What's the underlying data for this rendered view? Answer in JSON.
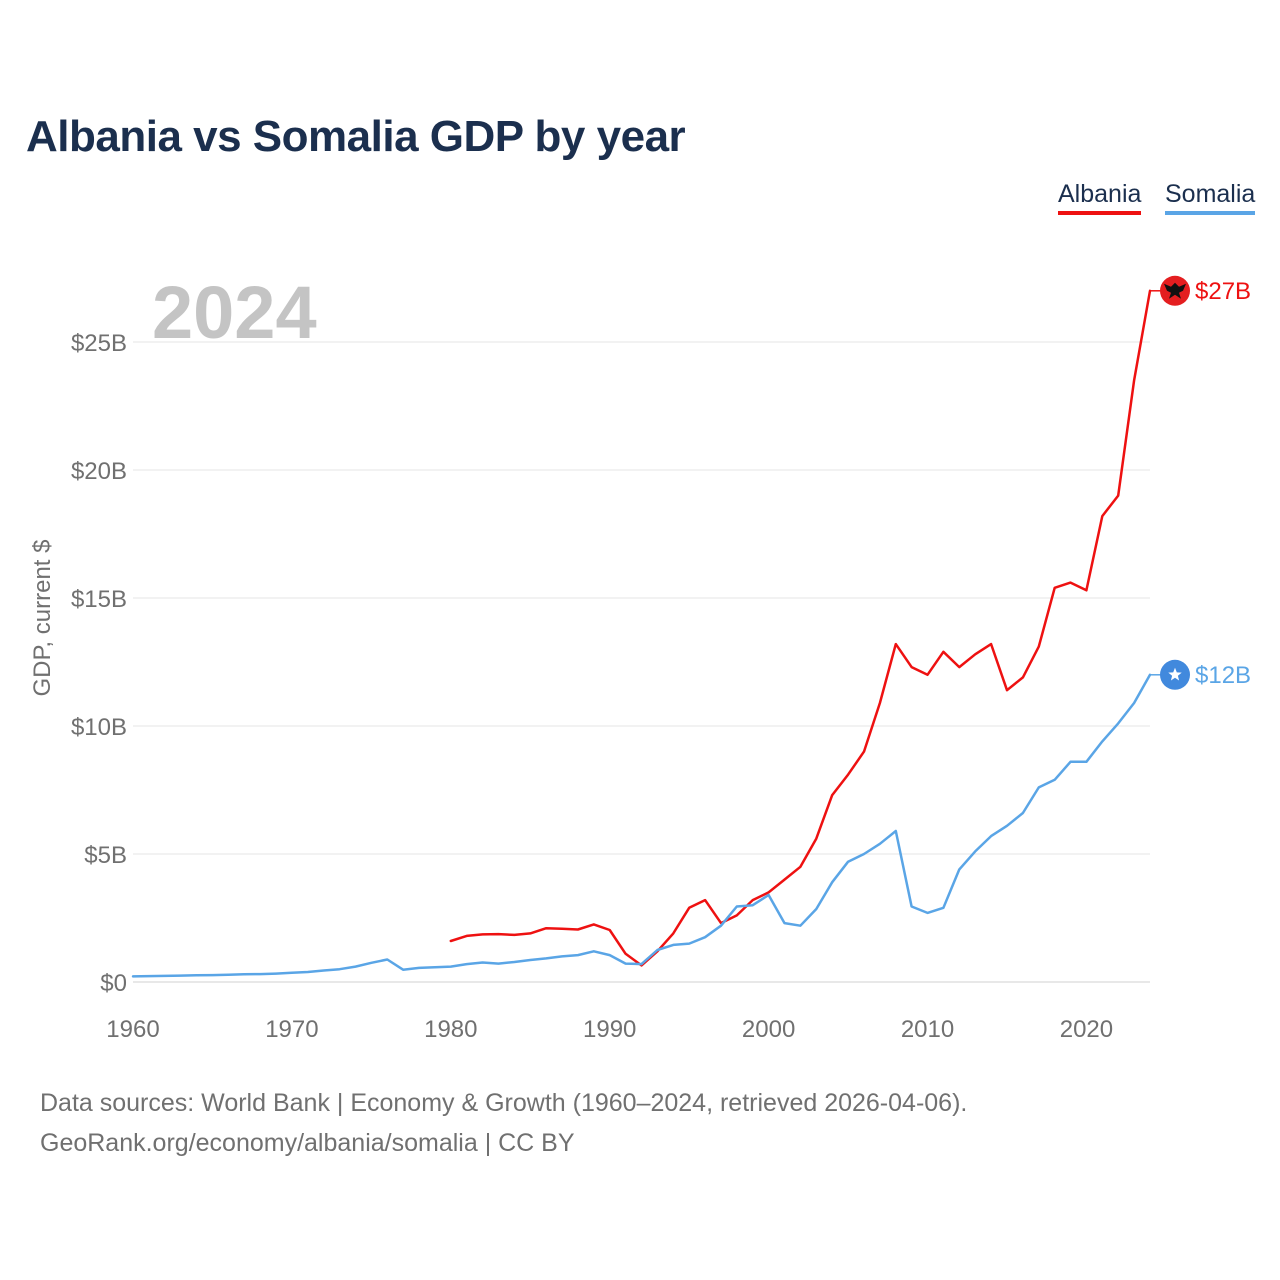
{
  "title": "Albania vs Somalia GDP by year",
  "legend": [
    {
      "label": "Albania",
      "color": "#ee1111"
    },
    {
      "label": "Somalia",
      "color": "#5aa5e6"
    }
  ],
  "source": {
    "line1": "Data sources: World Bank | Economy & Growth (1960–2024, retrieved 2026-04-06).",
    "line2": "GeoRank.org/economy/albania/somalia | CC BY"
  },
  "chart_data": {
    "type": "line",
    "title": "Albania vs Somalia GDP by year",
    "year_label": "2024",
    "xlabel": "",
    "ylabel": "GDP, current $",
    "xlim": [
      1960,
      2024
    ],
    "ylim": [
      0,
      27
    ],
    "x_ticks": [
      1960,
      1970,
      1980,
      1990,
      2000,
      2010,
      2020
    ],
    "x_tick_labels": [
      "1960",
      "1970",
      "1980",
      "1990",
      "2000",
      "2010",
      "2020"
    ],
    "y_ticks": [
      0,
      5,
      10,
      15,
      20,
      25
    ],
    "y_tick_labels": [
      "$0",
      "$5B",
      "$10B",
      "$15B",
      "$20B",
      "$25B"
    ],
    "units": "billions USD",
    "series": [
      {
        "name": "Albania",
        "color": "#ee1111",
        "end_label": "$27B",
        "marker_icon": "albania-flag-icon",
        "marker_color": "#e41e20",
        "x": [
          1980,
          1981,
          1982,
          1983,
          1984,
          1985,
          1986,
          1987,
          1988,
          1989,
          1990,
          1991,
          1992,
          1993,
          1994,
          1995,
          1996,
          1997,
          1998,
          1999,
          2000,
          2001,
          2002,
          2003,
          2004,
          2005,
          2006,
          2007,
          2008,
          2009,
          2010,
          2011,
          2012,
          2013,
          2014,
          2015,
          2016,
          2017,
          2018,
          2019,
          2020,
          2021,
          2022,
          2023,
          2024
        ],
        "values": [
          1.6,
          1.8,
          1.86,
          1.87,
          1.84,
          1.9,
          2.1,
          2.08,
          2.05,
          2.25,
          2.03,
          1.1,
          0.65,
          1.2,
          1.9,
          2.9,
          3.2,
          2.3,
          2.6,
          3.2,
          3.5,
          4.0,
          4.5,
          5.6,
          7.3,
          8.1,
          9.0,
          10.9,
          13.2,
          12.3,
          12.0,
          12.9,
          12.3,
          12.8,
          13.2,
          11.4,
          11.9,
          13.1,
          15.4,
          15.6,
          15.3,
          18.2,
          19.0,
          23.5,
          27.0
        ]
      },
      {
        "name": "Somalia",
        "color": "#5aa5e6",
        "end_label": "$12B",
        "marker_icon": "somalia-flag-icon",
        "marker_color": "#4189dd",
        "x": [
          1960,
          1961,
          1962,
          1963,
          1964,
          1965,
          1966,
          1967,
          1968,
          1969,
          1970,
          1971,
          1972,
          1973,
          1974,
          1975,
          1976,
          1977,
          1978,
          1979,
          1980,
          1981,
          1982,
          1983,
          1984,
          1985,
          1986,
          1987,
          1988,
          1989,
          1990,
          1991,
          1992,
          1993,
          1994,
          1995,
          1996,
          1997,
          1998,
          1999,
          2000,
          2001,
          2002,
          2003,
          2004,
          2005,
          2006,
          2007,
          2008,
          2009,
          2010,
          2011,
          2012,
          2013,
          2014,
          2015,
          2016,
          2017,
          2018,
          2019,
          2020,
          2021,
          2022,
          2023,
          2024
        ],
        "values": [
          0.22,
          0.23,
          0.24,
          0.25,
          0.26,
          0.27,
          0.28,
          0.3,
          0.31,
          0.33,
          0.36,
          0.39,
          0.45,
          0.5,
          0.6,
          0.75,
          0.88,
          0.48,
          0.55,
          0.58,
          0.6,
          0.7,
          0.76,
          0.72,
          0.78,
          0.86,
          0.92,
          1.0,
          1.05,
          1.2,
          1.05,
          0.72,
          0.7,
          1.25,
          1.45,
          1.5,
          1.75,
          2.2,
          2.95,
          3.0,
          3.4,
          2.3,
          2.2,
          2.85,
          3.9,
          4.7,
          5.0,
          5.4,
          5.9,
          2.95,
          2.7,
          2.9,
          4.4,
          5.1,
          5.7,
          6.1,
          6.6,
          7.6,
          7.9,
          8.6,
          8.6,
          9.4,
          10.1,
          10.9,
          12.0
        ]
      }
    ]
  }
}
